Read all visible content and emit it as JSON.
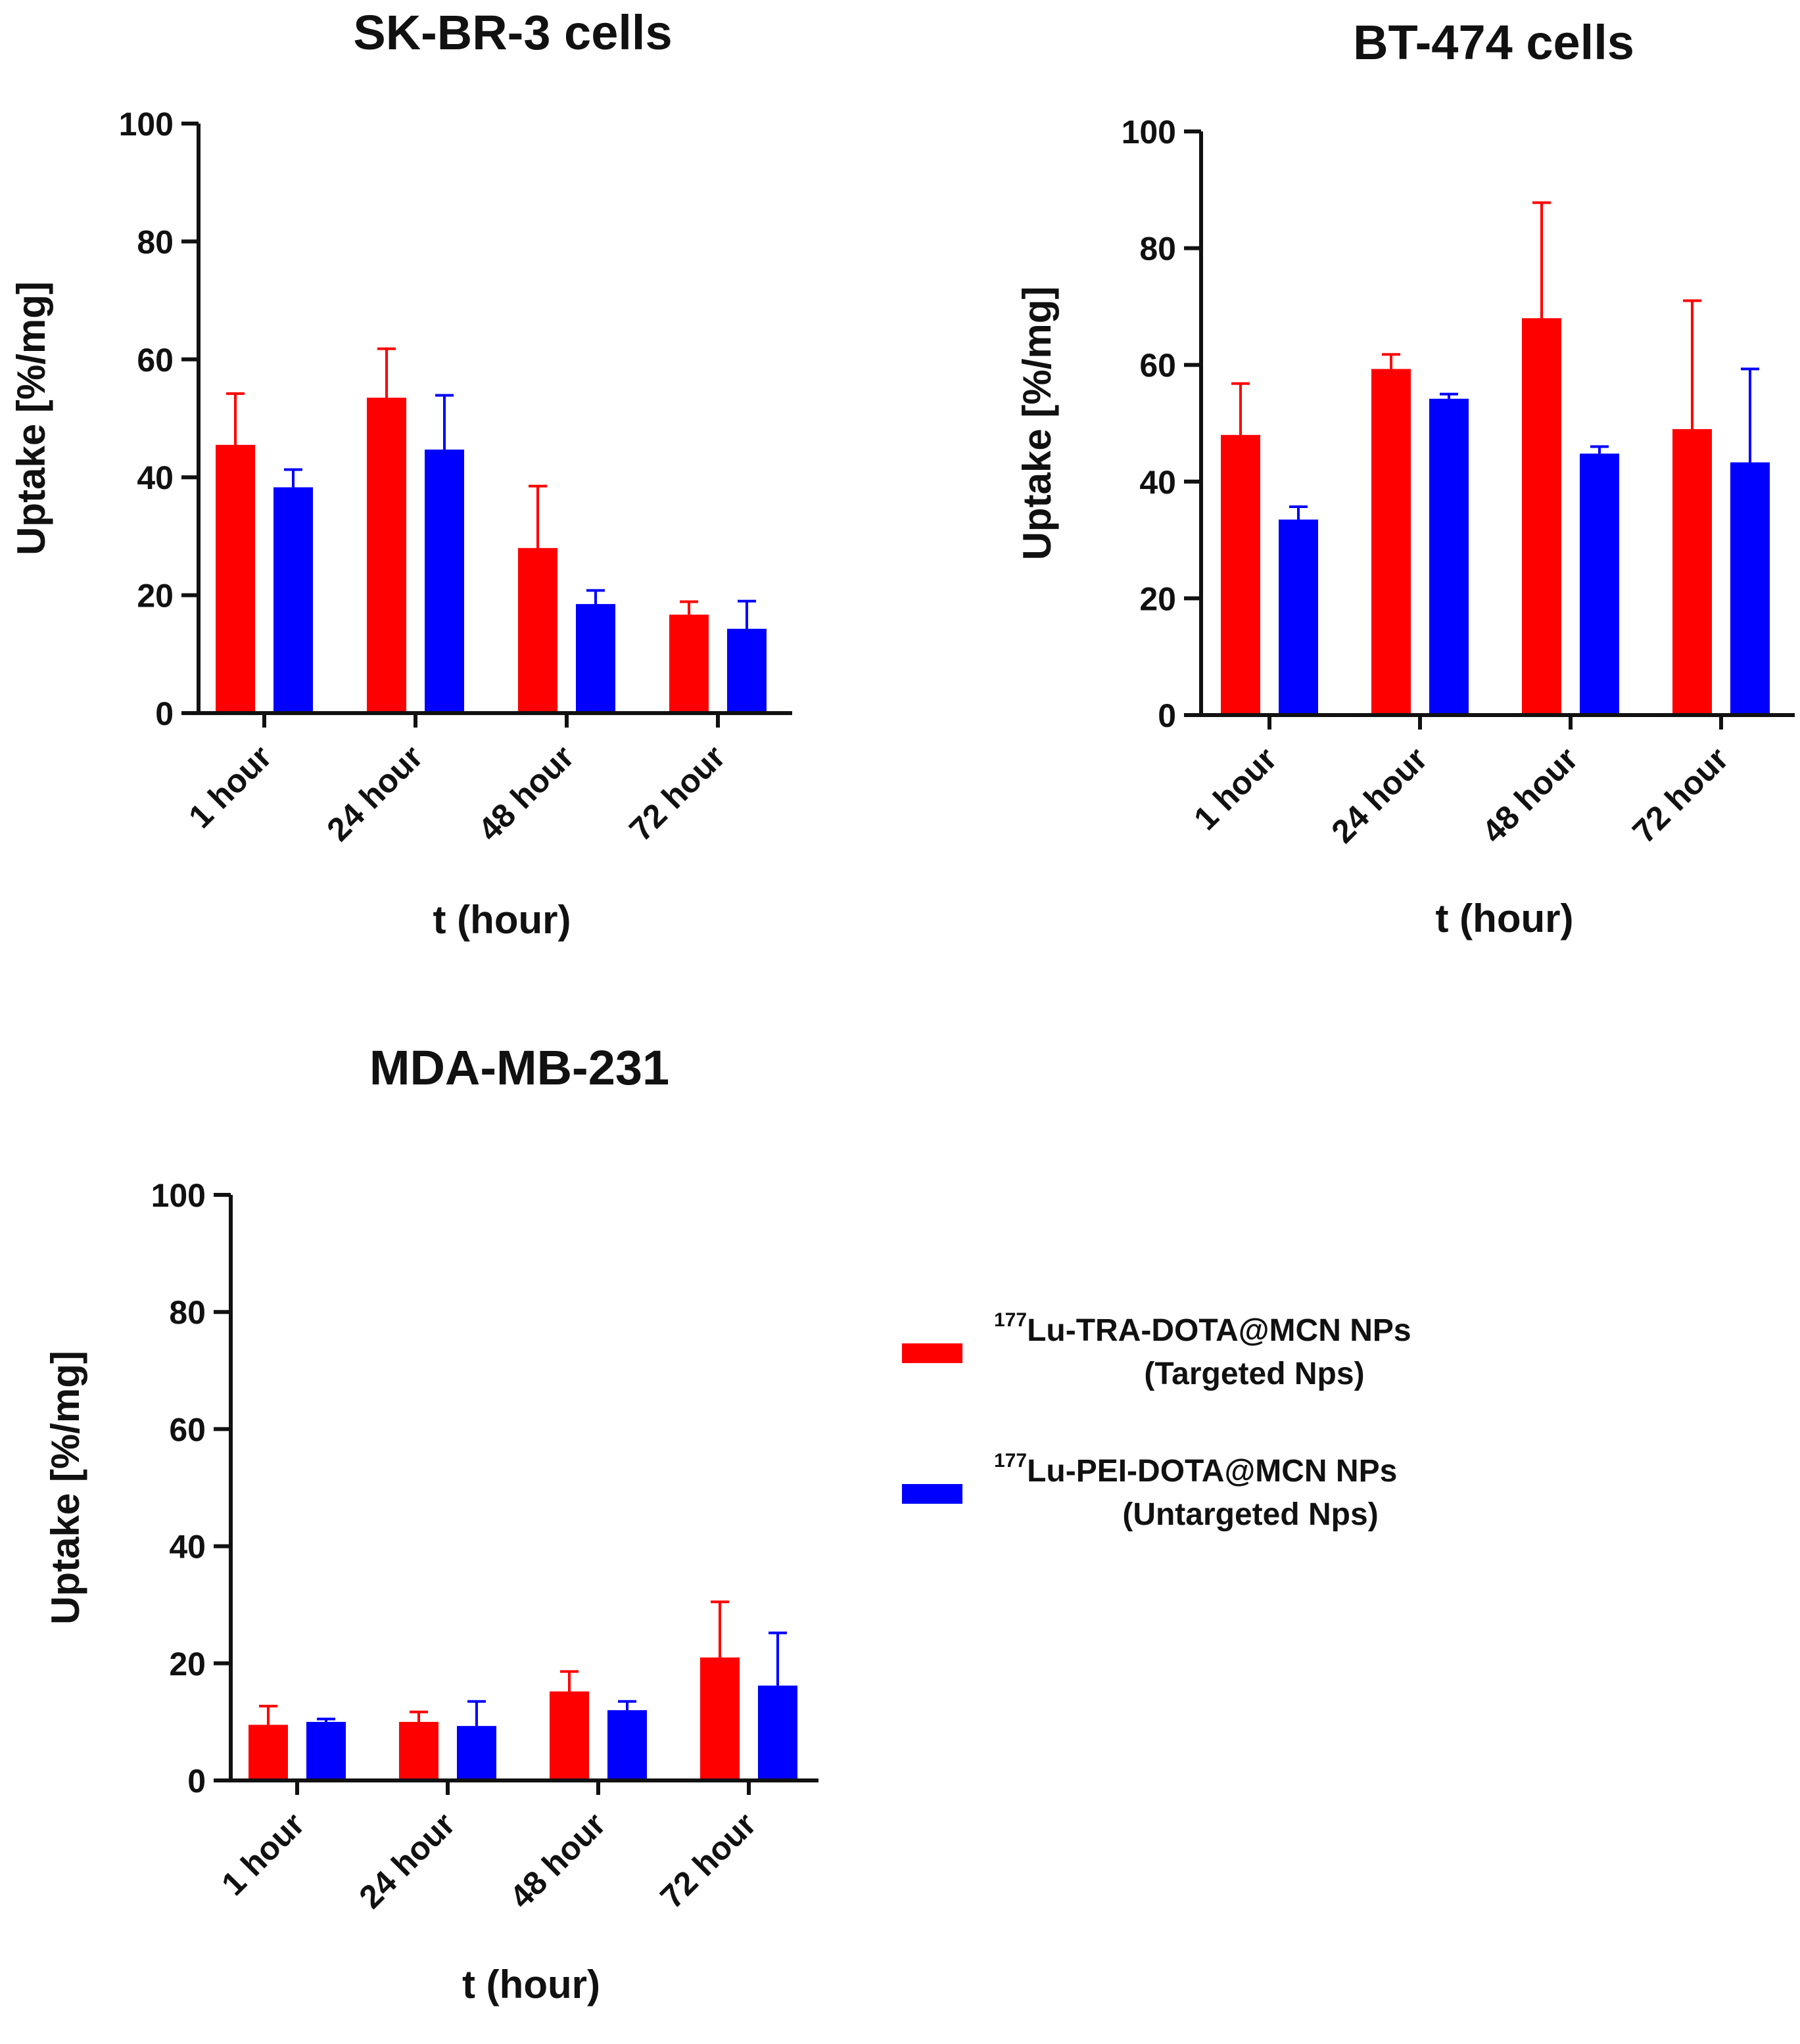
{
  "legend": {
    "items": [
      {
        "superscript": "177",
        "main": "Lu-TRA-DOTA@MCN NPs",
        "sub": "(Targeted Nps)",
        "color": "#ff0000"
      },
      {
        "superscript": "177",
        "main": "Lu-PEI-DOTA@MCN NPs",
        "sub": "(Untargeted Nps)",
        "color": "#0000ff"
      }
    ]
  },
  "chart_data": [
    {
      "type": "bar",
      "title": "SK-BR-3 cells",
      "xlabel": "t (hour)",
      "ylabel": "Uptake [%/mg]",
      "ylim": [
        0,
        100
      ],
      "yticks": [
        0,
        20,
        40,
        60,
        80,
        100
      ],
      "categories": [
        "1 hour",
        "24 hour",
        "48 hour",
        "72 hour"
      ],
      "series": [
        {
          "name": "177Lu-TRA-DOTA@MCN NPs",
          "color": "#ff0000",
          "values": [
            45.5,
            53.5,
            28,
            16.7
          ],
          "errors": [
            8.7,
            8.3,
            10.5,
            2.2
          ]
        },
        {
          "name": "177Lu-PEI-DOTA@MCN NPs",
          "color": "#0000ff",
          "values": [
            38.3,
            44.7,
            18.5,
            14.3
          ],
          "errors": [
            3,
            9.2,
            2.3,
            4.7
          ]
        }
      ]
    },
    {
      "type": "bar",
      "title": "BT-474 cells",
      "xlabel": "t (hour)",
      "ylabel": "Uptake [%/mg]",
      "ylim": [
        0,
        100
      ],
      "yticks": [
        0,
        20,
        40,
        60,
        80,
        100
      ],
      "categories": [
        "1 hour",
        "24 hour",
        "48 hour",
        "72 hour"
      ],
      "series": [
        {
          "name": "177Lu-TRA-DOTA@MCN NPs",
          "color": "#ff0000",
          "values": [
            48,
            59.3,
            68,
            49
          ],
          "errors": [
            8.8,
            2.5,
            19.8,
            22
          ]
        },
        {
          "name": "177Lu-PEI-DOTA@MCN NPs",
          "color": "#0000ff",
          "values": [
            33.5,
            54.2,
            44.8,
            43.3
          ],
          "errors": [
            2.2,
            0.8,
            1.2,
            16
          ]
        }
      ]
    },
    {
      "type": "bar",
      "title": "MDA-MB-231",
      "xlabel": "t (hour)",
      "ylabel": "Uptake [%/mg]",
      "ylim": [
        0,
        100
      ],
      "yticks": [
        0,
        20,
        40,
        60,
        80,
        100
      ],
      "categories": [
        "1 hour",
        "24 hour",
        "48 hour",
        "72 hour"
      ],
      "series": [
        {
          "name": "177Lu-TRA-DOTA@MCN NPs",
          "color": "#ff0000",
          "values": [
            9.5,
            10,
            15.2,
            21
          ],
          "errors": [
            3.2,
            1.7,
            3.4,
            9.5
          ]
        },
        {
          "name": "177Lu-PEI-DOTA@MCN NPs",
          "color": "#0000ff",
          "values": [
            10,
            9.3,
            12,
            16.2
          ],
          "errors": [
            0.5,
            4.2,
            1.5,
            9
          ]
        }
      ]
    }
  ]
}
